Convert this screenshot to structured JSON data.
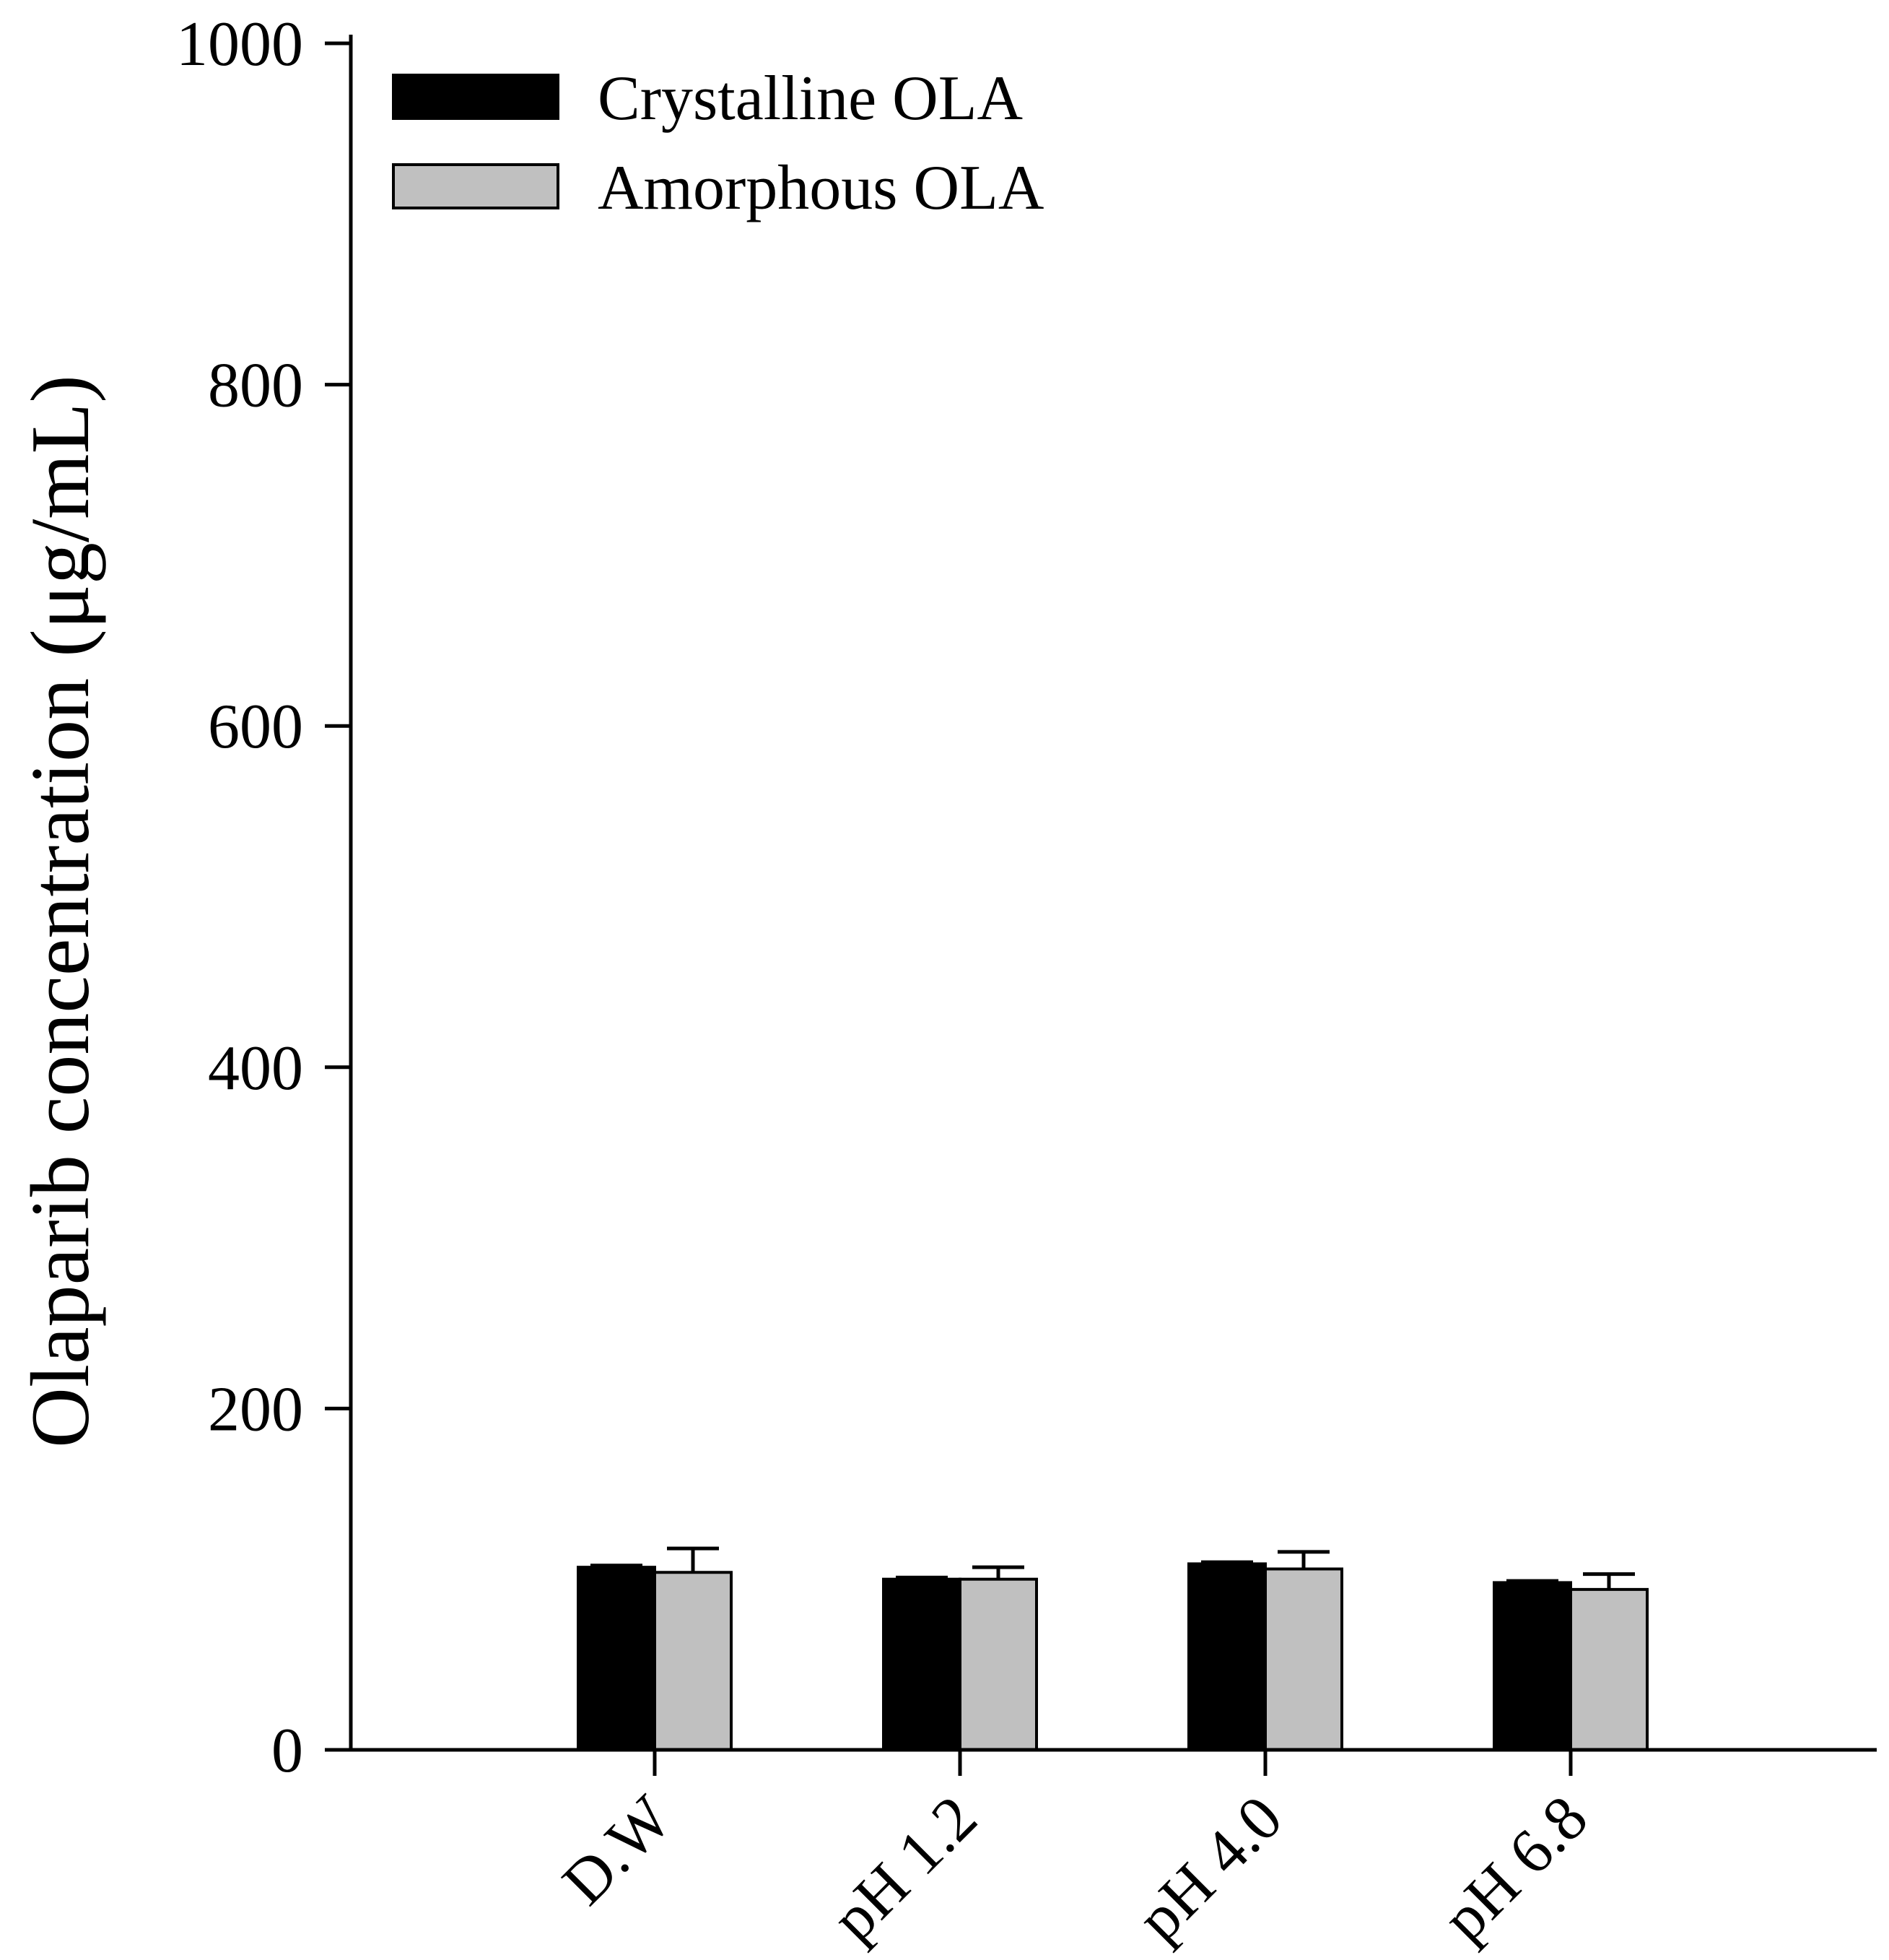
{
  "chart_data": {
    "type": "bar",
    "title": "",
    "xlabel": "",
    "ylabel": "Olaparib concentration (μg/mL)",
    "ylim": [
      0,
      1000
    ],
    "yticks": [
      0,
      200,
      400,
      600,
      800,
      1000
    ],
    "grid": false,
    "legend_position": "top-left",
    "categories": [
      "D.W",
      "pH 1.2",
      "pH 4.0",
      "pH 6.8"
    ],
    "series": [
      {
        "name": "Crystalline OLA",
        "color": "#000000",
        "values": [
          107,
          100,
          109,
          98
        ],
        "errors": [
          1,
          1,
          1,
          1
        ]
      },
      {
        "name": "Amorphous OLA",
        "color": "#c0c0c0",
        "values": [
          104,
          100,
          106,
          94
        ],
        "errors": [
          14,
          7,
          10,
          9
        ]
      }
    ]
  }
}
